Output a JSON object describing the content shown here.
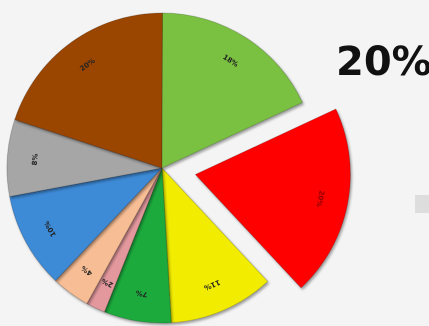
{
  "chart_data": {
    "type": "pie",
    "title": "",
    "callout": "20%",
    "slices": [
      {
        "label": "20%",
        "value": 20,
        "color": "#ff0000",
        "exploded": true,
        "label_color": "#8a0000"
      },
      {
        "label": "11%",
        "value": 11,
        "color": "#f2ed00",
        "exploded": false,
        "label_color": "#222222"
      },
      {
        "label": "7%",
        "value": 7,
        "color": "#1faa3c",
        "exploded": false,
        "label_color": "#222222"
      },
      {
        "label": "2%",
        "value": 2,
        "color": "#e3989d",
        "exploded": false,
        "label_color": "#222222"
      },
      {
        "label": "4%",
        "value": 4,
        "color": "#f7bd94",
        "exploded": false,
        "label_color": "#222222"
      },
      {
        "label": "10%",
        "value": 10,
        "color": "#3d8ad7",
        "exploded": false,
        "label_color": "#222222"
      },
      {
        "label": "8%",
        "value": 8,
        "color": "#a6a6a6",
        "exploded": false,
        "label_color": "#222222"
      },
      {
        "label": "20%",
        "value": 20,
        "color": "#9a4500",
        "exploded": false,
        "label_color": "#222222"
      },
      {
        "label": "18%",
        "value": 18,
        "color": "#7ac142",
        "exploded": false,
        "label_color": "#222222"
      }
    ],
    "legend": "none"
  }
}
